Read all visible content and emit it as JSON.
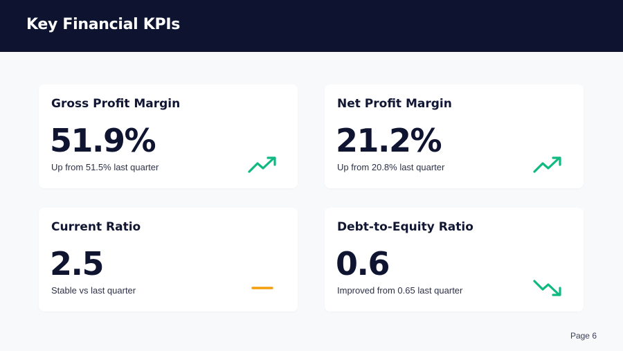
{
  "header": {
    "title": "Key Financial KPIs"
  },
  "kpis": [
    {
      "title": "Gross Profit Margin",
      "value": "51.9%",
      "note": "Up from 51.5% last quarter",
      "trend": "up",
      "trend_icon": "trend-up-icon",
      "trend_color": "#10b981"
    },
    {
      "title": "Net Profit Margin",
      "value": "21.2%",
      "note": "Up from 20.8% last quarter",
      "trend": "up",
      "trend_icon": "trend-up-icon",
      "trend_color": "#10b981"
    },
    {
      "title": "Current Ratio",
      "value": "2.5",
      "note": "Stable vs last quarter",
      "trend": "flat",
      "trend_icon": "trend-flat-icon",
      "trend_color": "#f59e0b"
    },
    {
      "title": "Debt-to-Equity Ratio",
      "value": "0.6",
      "note": "Improved from 0.65 last quarter",
      "trend": "down",
      "trend_icon": "trend-down-icon",
      "trend_color": "#10b981"
    }
  ],
  "footer": {
    "page_label": "Page 6"
  },
  "colors": {
    "header_bg": "#0e1330",
    "page_bg": "#f8f9fb",
    "card_bg": "#ffffff",
    "text_dark": "#0f1431"
  }
}
